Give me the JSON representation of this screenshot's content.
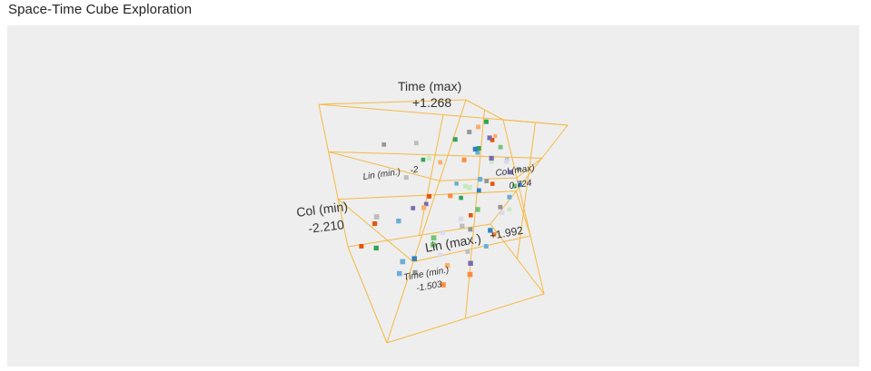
{
  "title": "Space-Time Cube Exploration",
  "chart_data": {
    "type": "scatter",
    "subtype": "3d-space-time-cube",
    "axes": {
      "time": {
        "min": -1.503,
        "max": 1.268,
        "label_min": "Time (min.)",
        "label_max": "Time (max)",
        "min_text": "-1.503",
        "max_text": "+1.268"
      },
      "col": {
        "min": -2.21,
        "max": 0.724,
        "label_min": "Col (min)",
        "label_max": "Col (max)",
        "min_text": "-2.210",
        "max_text": "0.724"
      },
      "lin": {
        "min": -2.0,
        "max": 1.992,
        "label_min": "Lin (min.)",
        "label_max": "Lin (max.)",
        "min_text": "-2",
        "max_text": "+1.992"
      }
    },
    "grid": true,
    "palette": [
      "#e6550d",
      "#fd8d3c",
      "#fdae6b",
      "#31a354",
      "#74c476",
      "#c7e9c0",
      "#3182bd",
      "#6baed6",
      "#756bb1",
      "#969696",
      "#bdbdbd",
      "#dadaeb"
    ],
    "points": [
      {
        "col": -0.3,
        "lin": 0.6,
        "time": 1.15,
        "c": 3
      },
      {
        "col": -0.45,
        "lin": 0.3,
        "time": 1.05,
        "c": 2
      },
      {
        "col": -0.6,
        "lin": 0.1,
        "time": 0.95,
        "c": 9
      },
      {
        "col": -0.2,
        "lin": 0.9,
        "time": 0.9,
        "c": 8
      },
      {
        "col": -0.8,
        "lin": -0.2,
        "time": 0.8,
        "c": 3
      },
      {
        "col": -0.1,
        "lin": 0.2,
        "time": 0.85,
        "c": 0
      },
      {
        "col": 0.1,
        "lin": 0.5,
        "time": 0.75,
        "c": 4
      },
      {
        "col": -0.55,
        "lin": 0.8,
        "time": 0.7,
        "c": 6
      },
      {
        "col": -1.2,
        "lin": -1.2,
        "time": 0.65,
        "c": 10
      },
      {
        "col": -0.35,
        "lin": -0.1,
        "time": 0.6,
        "c": 7
      },
      {
        "col": 0.3,
        "lin": 1.2,
        "time": 0.55,
        "c": 11
      },
      {
        "col": -0.7,
        "lin": 0.4,
        "time": 0.5,
        "c": 1
      },
      {
        "col": -1.5,
        "lin": -1.8,
        "time": 0.55,
        "c": 9
      },
      {
        "col": -0.05,
        "lin": 0.0,
        "time": 0.45,
        "c": 5
      },
      {
        "col": 0.45,
        "lin": 1.5,
        "time": 0.4,
        "c": 8
      },
      {
        "col": -0.9,
        "lin": -0.7,
        "time": 0.35,
        "c": 2
      },
      {
        "col": 0.2,
        "lin": 0.7,
        "time": 0.3,
        "c": 11
      },
      {
        "col": -0.4,
        "lin": 1.0,
        "time": 0.25,
        "c": 7
      },
      {
        "col": -1.0,
        "lin": -1.5,
        "time": 0.3,
        "c": 3
      },
      {
        "col": 0.55,
        "lin": 1.8,
        "time": 0.2,
        "c": 4
      },
      {
        "col": -0.15,
        "lin": 0.4,
        "time": 0.15,
        "c": 9
      },
      {
        "col": -0.65,
        "lin": 0.6,
        "time": 0.1,
        "c": 5
      },
      {
        "col": -1.4,
        "lin": -0.9,
        "time": 0.05,
        "c": 10
      },
      {
        "col": 0.05,
        "lin": -0.3,
        "time": 0.0,
        "c": 0
      },
      {
        "col": -0.25,
        "lin": 0.1,
        "time": -0.05,
        "c": 6
      },
      {
        "col": -0.85,
        "lin": 0.2,
        "time": -0.1,
        "c": 1
      },
      {
        "col": 0.35,
        "lin": 1.1,
        "time": -0.05,
        "c": 7
      },
      {
        "col": -0.5,
        "lin": 1.4,
        "time": -0.15,
        "c": 4
      },
      {
        "col": -1.1,
        "lin": -0.4,
        "time": -0.2,
        "c": 0
      },
      {
        "col": 0.15,
        "lin": 0.8,
        "time": -0.25,
        "c": 9
      },
      {
        "col": -0.45,
        "lin": -0.6,
        "time": -0.3,
        "c": 3
      },
      {
        "col": -0.75,
        "lin": 0.9,
        "time": -0.35,
        "c": 11
      },
      {
        "col": -1.3,
        "lin": 0.0,
        "time": -0.3,
        "c": 2
      },
      {
        "col": 0.4,
        "lin": 0.3,
        "time": -0.4,
        "c": 5
      },
      {
        "col": -0.2,
        "lin": 1.6,
        "time": -0.45,
        "c": 6
      },
      {
        "col": -0.95,
        "lin": -1.1,
        "time": -0.5,
        "c": 8
      },
      {
        "col": -0.6,
        "lin": 0.5,
        "time": -0.55,
        "c": 10
      },
      {
        "col": -1.6,
        "lin": -0.5,
        "time": -0.6,
        "c": 7
      },
      {
        "col": 0.0,
        "lin": 1.0,
        "time": -0.65,
        "c": 1
      },
      {
        "col": -0.35,
        "lin": 0.2,
        "time": -0.7,
        "c": 9
      },
      {
        "col": -1.2,
        "lin": 0.6,
        "time": -0.75,
        "c": 4
      },
      {
        "col": -0.8,
        "lin": -0.2,
        "time": -0.8,
        "c": 11
      },
      {
        "col": -1.8,
        "lin": -1.3,
        "time": -0.85,
        "c": 0
      },
      {
        "col": -0.1,
        "lin": 0.7,
        "time": -0.9,
        "c": 7
      },
      {
        "col": -0.55,
        "lin": 1.3,
        "time": -0.95,
        "c": 8
      },
      {
        "col": -1.45,
        "lin": 0.3,
        "time": -1.0,
        "c": 6
      },
      {
        "col": -0.9,
        "lin": 0.8,
        "time": -1.05,
        "c": 2
      },
      {
        "col": -1.9,
        "lin": -0.8,
        "time": -1.1,
        "c": 3
      },
      {
        "col": -0.3,
        "lin": 0.0,
        "time": -1.15,
        "c": 10
      },
      {
        "col": -1.05,
        "lin": 1.2,
        "time": -1.2,
        "c": 1
      },
      {
        "col": -1.65,
        "lin": 0.1,
        "time": -1.25,
        "c": 7
      },
      {
        "col": -0.7,
        "lin": -0.5,
        "time": -1.3,
        "c": 11
      },
      {
        "col": -2.0,
        "lin": -1.6,
        "time": -1.35,
        "c": 0
      },
      {
        "col": -1.25,
        "lin": -0.2,
        "time": -1.4,
        "c": 9
      },
      {
        "col": -0.4,
        "lin": 0.4,
        "time": 0.7,
        "c": 3
      },
      {
        "col": -0.15,
        "lin": 1.3,
        "time": 0.6,
        "c": 8
      },
      {
        "col": 0.25,
        "lin": 0.0,
        "time": 0.5,
        "c": 10
      },
      {
        "col": -1.05,
        "lin": -0.9,
        "time": 0.4,
        "c": 5
      },
      {
        "col": 0.6,
        "lin": 0.7,
        "time": 0.1,
        "c": 6
      },
      {
        "col": -0.5,
        "lin": -1.0,
        "time": -0.1,
        "c": 7
      },
      {
        "col": 0.1,
        "lin": 1.7,
        "time": -0.2,
        "c": 11
      },
      {
        "col": -1.35,
        "lin": 1.0,
        "time": -0.55,
        "c": 4
      },
      {
        "col": -0.25,
        "lin": -0.4,
        "time": -0.6,
        "c": 0
      },
      {
        "col": -1.75,
        "lin": 0.5,
        "time": -0.95,
        "c": 7
      },
      {
        "col": -0.65,
        "lin": 1.7,
        "time": -1.0,
        "c": 1
      },
      {
        "col": -1.1,
        "lin": -1.4,
        "time": -0.65,
        "c": 8
      },
      {
        "col": 0.5,
        "lin": -0.2,
        "time": 0.3,
        "c": 9
      },
      {
        "col": -0.85,
        "lin": 1.6,
        "time": 0.2,
        "c": 5
      },
      {
        "col": -2.1,
        "lin": -0.3,
        "time": -0.45,
        "c": 10
      },
      {
        "col": -0.05,
        "lin": -0.8,
        "time": 0.9,
        "c": 2
      }
    ]
  }
}
